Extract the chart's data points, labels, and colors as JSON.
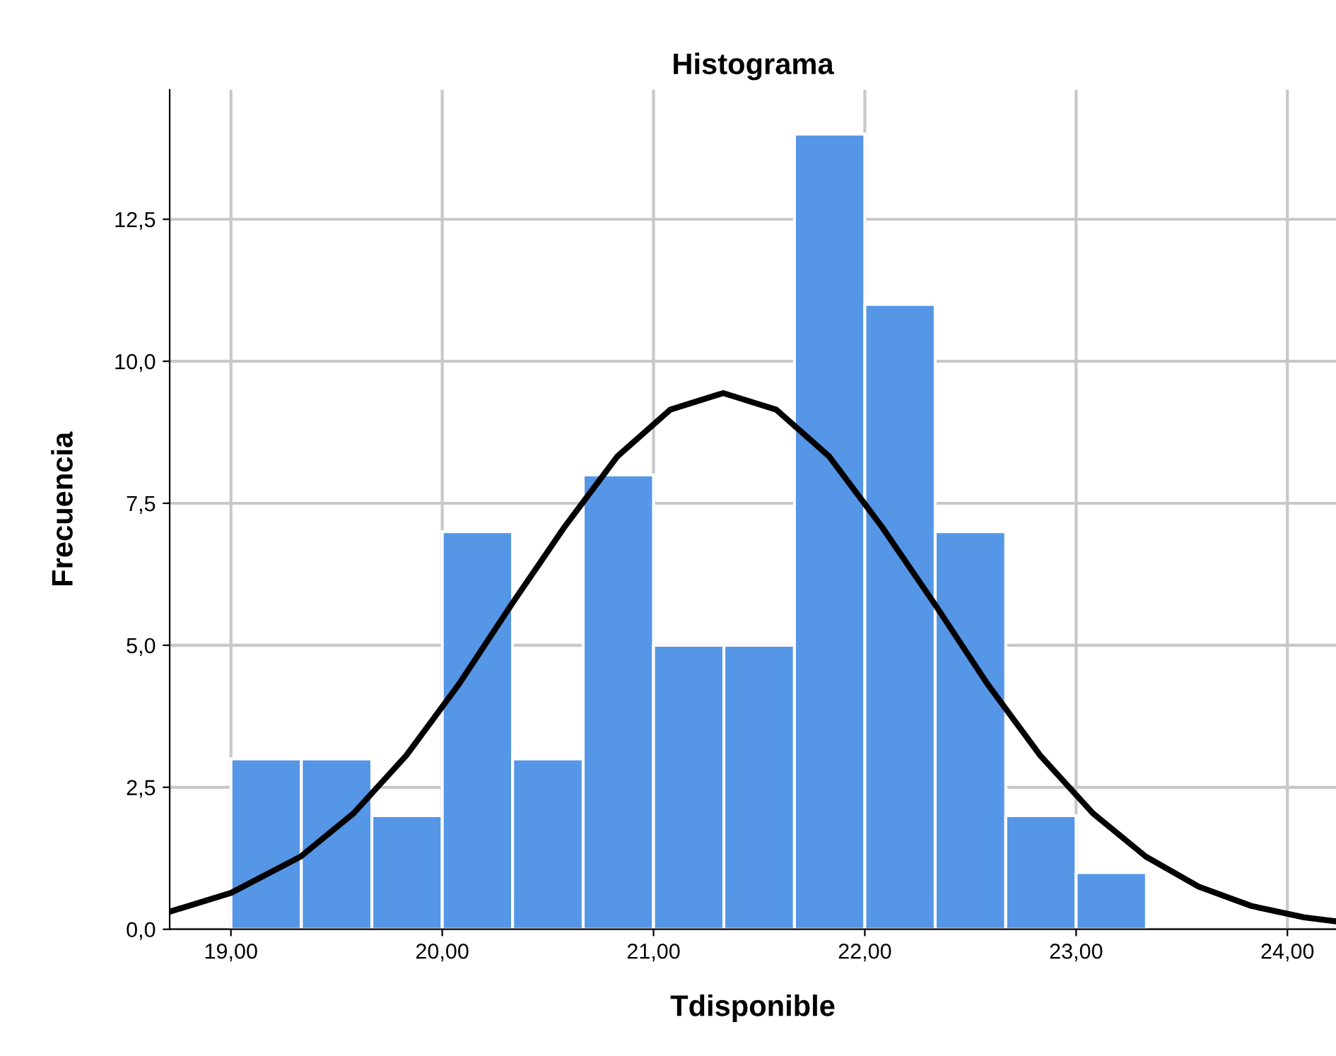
{
  "chart_data": {
    "type": "histogram",
    "title": "Histograma",
    "xlabel": "Tdisponible",
    "ylabel": "Frecuencia",
    "bins": [
      19.0,
      19.333,
      19.667,
      20.0,
      20.333,
      20.667,
      21.0,
      21.333,
      21.667,
      22.0,
      22.333,
      22.667,
      23.0,
      23.333
    ],
    "values": [
      3,
      3,
      2,
      7,
      3,
      8,
      5,
      5,
      14,
      11,
      7,
      2,
      1
    ],
    "color": "#5596e6",
    "series": [
      {
        "type": "line",
        "color": "#000000",
        "x": [
          18.71,
          19.0,
          19.33,
          19.58,
          19.83,
          20.08,
          20.33,
          20.58,
          20.83,
          21.08,
          21.33,
          21.58,
          21.83,
          22.08,
          22.33,
          22.58,
          22.83,
          23.08,
          23.33,
          23.58,
          23.83,
          24.08,
          24.23
        ],
        "values": [
          0.31,
          0.64,
          1.28,
          2.04,
          3.06,
          4.32,
          5.73,
          7.09,
          8.33,
          9.15,
          9.44,
          9.15,
          8.33,
          7.09,
          5.73,
          4.32,
          3.06,
          2.04,
          1.28,
          0.75,
          0.41,
          0.21,
          0.14
        ]
      }
    ],
    "xlim": [
      18.71,
      24.23
    ],
    "ylim": [
      0,
      14.78
    ],
    "xticks": [
      {
        "value": 19,
        "label": "19,00"
      },
      {
        "value": 20,
        "label": "20,00"
      },
      {
        "value": 21,
        "label": "21,00"
      },
      {
        "value": 22,
        "label": "22,00"
      },
      {
        "value": 23,
        "label": "23,00"
      },
      {
        "value": 24,
        "label": "24,00"
      }
    ],
    "yticks": [
      {
        "value": 0,
        "label": "0,0"
      },
      {
        "value": 2.5,
        "label": "2,5"
      },
      {
        "value": 5,
        "label": "5,0"
      },
      {
        "value": 7.5,
        "label": "7,5"
      },
      {
        "value": 10,
        "label": "10,0"
      },
      {
        "value": 12.5,
        "label": "12,5"
      }
    ],
    "grid": true
  }
}
